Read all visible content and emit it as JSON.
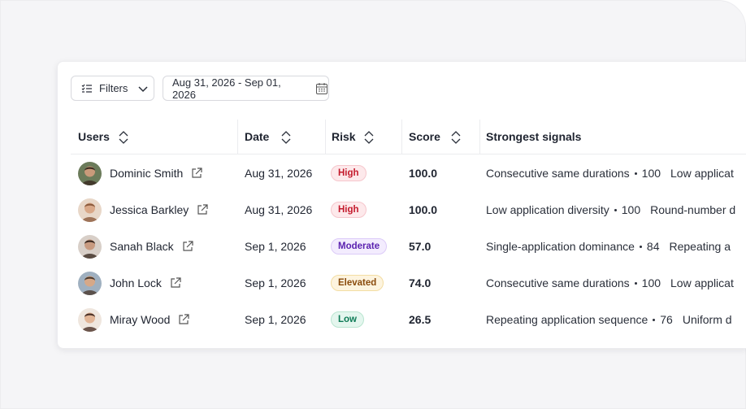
{
  "toolbar": {
    "filters": "Filters",
    "date_range": "Aug 31, 2026 - Sep 01, 2026"
  },
  "table": {
    "columns": [
      "Users",
      "Date",
      "Risk",
      "Score",
      "Strongest signals"
    ],
    "rows": [
      {
        "user": "Dominic Smith",
        "date": "Aug 31, 2026",
        "risk": "High",
        "score": "100.0",
        "signals": [
          {
            "name": "Consecutive same durations",
            "score": "100"
          },
          {
            "name": "Low applicat"
          }
        ]
      },
      {
        "user": "Jessica Barkley",
        "date": "Aug 31, 2026",
        "risk": "High",
        "score": "100.0",
        "signals": [
          {
            "name": "Low application diversity",
            "score": "100"
          },
          {
            "name": "Round-number d"
          }
        ]
      },
      {
        "user": "Sanah Black",
        "date": "Sep 1, 2026",
        "risk": "Moderate",
        "score": "57.0",
        "signals": [
          {
            "name": "Single-application dominance",
            "score": "84"
          },
          {
            "name": "Repeating a"
          }
        ]
      },
      {
        "user": "John Lock",
        "date": "Sep 1, 2026",
        "risk": "Elevated",
        "score": "74.0",
        "signals": [
          {
            "name": "Consecutive same durations",
            "score": "100"
          },
          {
            "name": "Low applicat"
          }
        ]
      },
      {
        "user": "Miray Wood",
        "date": "Sep 1, 2026",
        "risk": "Low",
        "score": "26.5",
        "signals": [
          {
            "name": "Repeating application sequence",
            "score": "76"
          },
          {
            "name": "Uniform d"
          }
        ]
      }
    ]
  }
}
